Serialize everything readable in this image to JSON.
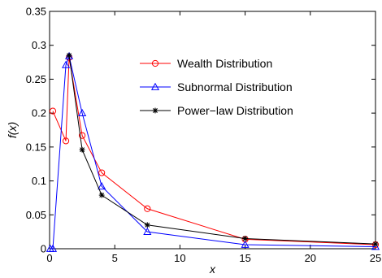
{
  "chart_data": {
    "type": "line",
    "xlabel": "x",
    "ylabel": "f(x)",
    "xlim": [
      0,
      25
    ],
    "ylim": [
      0,
      0.35
    ],
    "xticks": [
      0,
      5,
      10,
      15,
      20,
      25
    ],
    "yticks": [
      0,
      0.05,
      0.1,
      0.15,
      0.2,
      0.25,
      0.3,
      0.35
    ],
    "xtick_labels": [
      "0",
      "5",
      "10",
      "15",
      "20",
      "25"
    ],
    "ytick_labels": [
      "0",
      "0.05",
      "0.1",
      "0.15",
      "0.2",
      "0.25",
      "0.3",
      "0.35"
    ],
    "grid": false,
    "legend_position": "upper-right",
    "series": [
      {
        "name": "Wealth Distribution",
        "color": "#ff0000",
        "marker": "circle",
        "x": [
          0.25,
          1.25,
          1.5,
          2.5,
          4,
          7.5,
          15,
          25
        ],
        "y": [
          0.203,
          0.159,
          0.282,
          0.167,
          0.112,
          0.059,
          0.014,
          0.006
        ]
      },
      {
        "name": "Subnormal Distribution",
        "color": "#0000ff",
        "marker": "triangle",
        "x": [
          0.05,
          0.25,
          1.25,
          1.5,
          2.5,
          4,
          7.5,
          15,
          25
        ],
        "y": [
          0.0,
          0.0,
          0.271,
          0.284,
          0.2,
          0.092,
          0.025,
          0.006,
          0.003
        ]
      },
      {
        "name": "Power−law Distribution",
        "color": "#000000",
        "marker": "star",
        "x": [
          1.5,
          2.5,
          4,
          7.5,
          15,
          25
        ],
        "y": [
          0.285,
          0.146,
          0.079,
          0.035,
          0.015,
          0.007
        ]
      }
    ]
  }
}
